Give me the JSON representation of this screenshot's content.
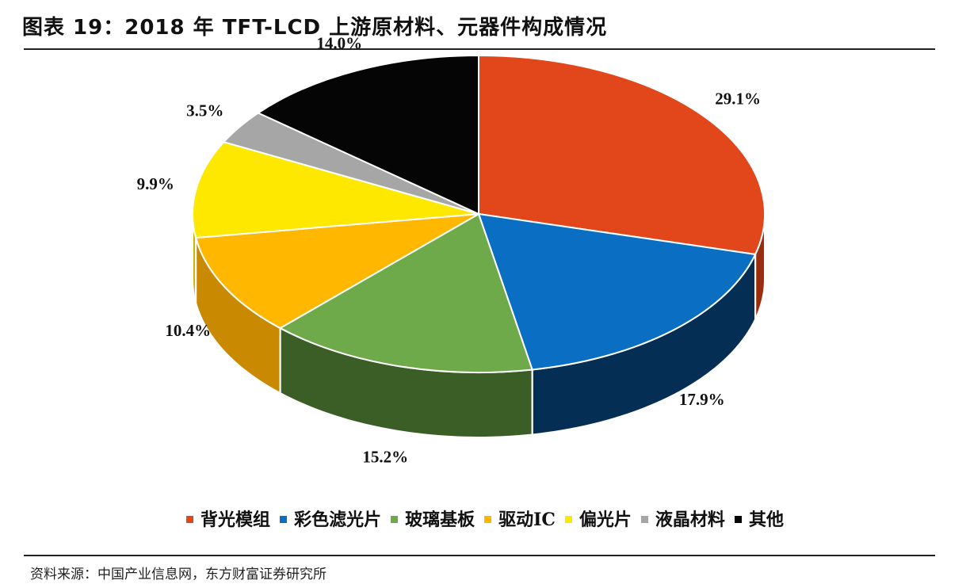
{
  "header": {
    "title": "图表 19：2018 年 TFT-LCD 上游原材料、元器件构成情况"
  },
  "footer": {
    "source": "资料来源：中国产业信息网，东方财富证券研究所"
  },
  "chart_data": {
    "type": "pie",
    "title": "",
    "three_d": true,
    "legend_position": "bottom",
    "categories": [
      "背光模组",
      "彩色滤光片",
      "玻璃基板",
      "驱动IC",
      "偏光片",
      "液晶材料",
      "其他"
    ],
    "values": [
      29.1,
      17.9,
      15.2,
      10.4,
      9.9,
      3.5,
      14.0
    ],
    "labels": [
      "29.1%",
      "17.9%",
      "15.2%",
      "10.4%",
      "9.9%",
      "3.5%",
      "14.0%"
    ],
    "colors": [
      "#E1471B",
      "#0A6FC2",
      "#6EA94A",
      "#FFB700",
      "#FFE800",
      "#A6A6A6",
      "#050505"
    ],
    "side_colors": [
      "#9A2D0E",
      "#052E55",
      "#3B5E26",
      "#C98900",
      "#C9B500",
      "#6E6E6E",
      "#000000"
    ]
  }
}
